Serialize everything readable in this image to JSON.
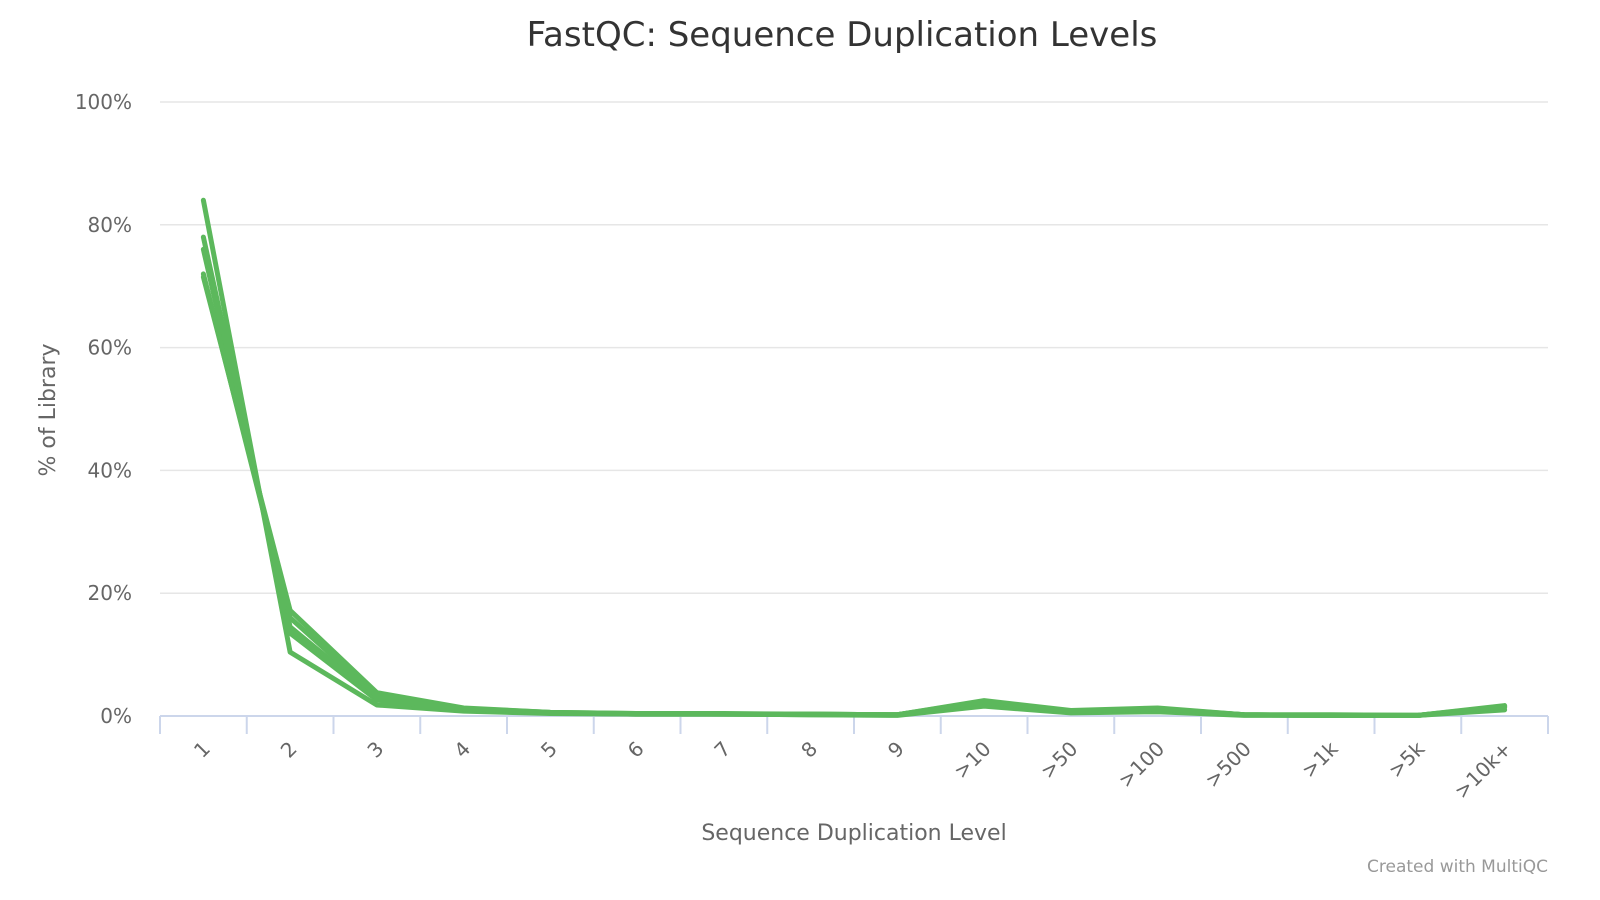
{
  "credit": "Created with MultiQC",
  "colors": {
    "series": "#5cb85c",
    "grid": "#e6e6e6",
    "axis": "#ccd6eb",
    "title": "#333333",
    "label": "#666666"
  },
  "chart_data": {
    "type": "line",
    "title": "FastQC: Sequence Duplication Levels",
    "xlabel": "Sequence Duplication Level",
    "ylabel": "% of Library",
    "ylim": [
      0,
      100
    ],
    "y_ticks": [
      0,
      20,
      40,
      60,
      80,
      100
    ],
    "y_tick_labels": [
      "0%",
      "20%",
      "40%",
      "60%",
      "80%",
      "100%"
    ],
    "categories": [
      "1",
      "2",
      "3",
      "4",
      "5",
      "6",
      "7",
      "8",
      "9",
      ">10",
      ">50",
      ">100",
      ">500",
      ">1k",
      ">5k",
      ">10k+"
    ],
    "grid": true,
    "legend": "none",
    "series": [
      {
        "values": [
          84.0,
          10.4,
          1.8,
          0.8,
          0.4,
          0.3,
          0.3,
          0.2,
          0.1,
          1.6,
          0.5,
          0.7,
          0.1,
          0.1,
          0.1,
          1.0
        ]
      },
      {
        "values": [
          78.0,
          13.5,
          2.6,
          1.0,
          0.5,
          0.3,
          0.3,
          0.2,
          0.2,
          2.2,
          0.7,
          1.1,
          0.2,
          0.1,
          0.1,
          1.4
        ]
      },
      {
        "values": [
          76.0,
          14.5,
          2.9,
          1.1,
          0.5,
          0.3,
          0.3,
          0.3,
          0.2,
          2.3,
          0.8,
          1.1,
          0.2,
          0.1,
          0.1,
          1.5
        ]
      },
      {
        "values": [
          72.0,
          16.0,
          3.3,
          1.2,
          0.6,
          0.4,
          0.3,
          0.3,
          0.2,
          2.4,
          0.8,
          1.2,
          0.2,
          0.1,
          0.1,
          1.6
        ]
      },
      {
        "values": [
          71.5,
          17.2,
          3.8,
          1.3,
          0.6,
          0.4,
          0.4,
          0.3,
          0.2,
          2.5,
          0.9,
          1.3,
          0.2,
          0.2,
          0.1,
          1.7
        ]
      }
    ]
  }
}
